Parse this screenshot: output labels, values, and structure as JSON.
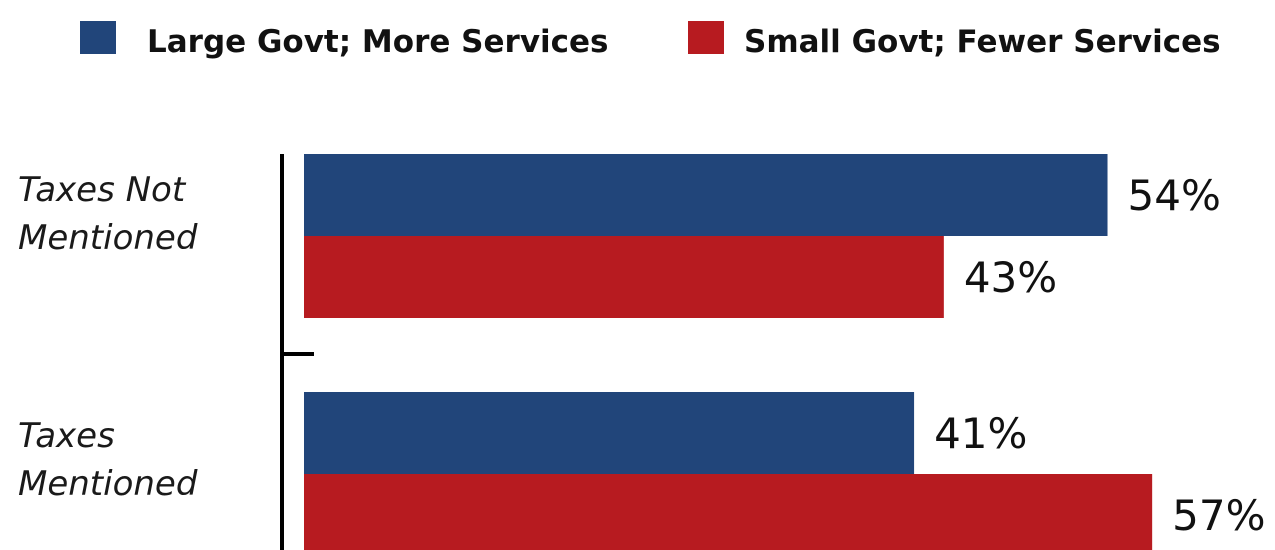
{
  "chart_data": {
    "type": "bar",
    "orientation": "horizontal",
    "categories": [
      "Taxes Not Mentioned",
      "Taxes Mentioned"
    ],
    "category_lines": [
      [
        "Taxes Not",
        "Mentioned"
      ],
      [
        "Taxes",
        "Mentioned"
      ]
    ],
    "series": [
      {
        "name": "Large Govt; More Services",
        "color": "#21457a",
        "values": [
          54,
          41
        ],
        "labels": [
          "54%",
          "41%"
        ]
      },
      {
        "name": "Small Govt; Fewer Services",
        "color": "#b71b20",
        "values": [
          43,
          57
        ],
        "labels": [
          "43%",
          "57%"
        ]
      }
    ],
    "unit": "%",
    "xlim": [
      0,
      60
    ],
    "grid": false,
    "legend": "top"
  }
}
